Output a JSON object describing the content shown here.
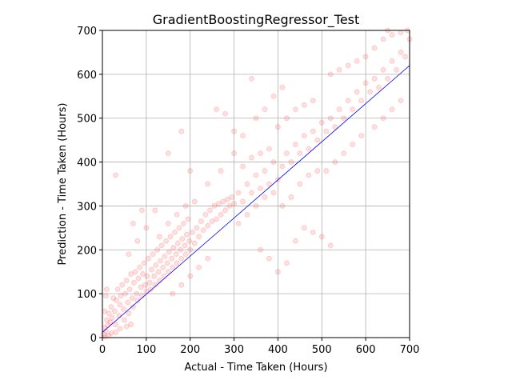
{
  "chart_data": {
    "type": "scatter",
    "title": "GradientBoostingRegressor_Test",
    "xlabel": "Actual - Time Taken (Hours)",
    "ylabel": "Prediction - Time Taken (Hours)",
    "xlim": [
      0,
      700
    ],
    "ylim": [
      0,
      700
    ],
    "xticks": [
      0,
      100,
      200,
      300,
      400,
      500,
      600,
      700
    ],
    "yticks": [
      0,
      100,
      200,
      300,
      400,
      500,
      600,
      700
    ],
    "grid": true,
    "marker_color": "#ff0000",
    "marker_alpha": 0.12,
    "line_color": "#0000ff",
    "fit_line": {
      "x": [
        0,
        700
      ],
      "y": [
        12,
        620
      ]
    },
    "points": [
      [
        3,
        8
      ],
      [
        5,
        22
      ],
      [
        8,
        15
      ],
      [
        10,
        40
      ],
      [
        12,
        28
      ],
      [
        15,
        55
      ],
      [
        18,
        35
      ],
      [
        20,
        70
      ],
      [
        22,
        45
      ],
      [
        25,
        90
      ],
      [
        28,
        60
      ],
      [
        30,
        30
      ],
      [
        32,
        85
      ],
      [
        35,
        110
      ],
      [
        38,
        50
      ],
      [
        40,
        75
      ],
      [
        42,
        95
      ],
      [
        45,
        120
      ],
      [
        48,
        65
      ],
      [
        50,
        40
      ],
      [
        52,
        100
      ],
      [
        55,
        130
      ],
      [
        58,
        80
      ],
      [
        60,
        55
      ],
      [
        62,
        110
      ],
      [
        65,
        145
      ],
      [
        68,
        90
      ],
      [
        70,
        70
      ],
      [
        72,
        125
      ],
      [
        75,
        150
      ],
      [
        78,
        100
      ],
      [
        80,
        85
      ],
      [
        82,
        135
      ],
      [
        85,
        160
      ],
      [
        88,
        115
      ],
      [
        90,
        95
      ],
      [
        92,
        145
      ],
      [
        95,
        170
      ],
      [
        98,
        120
      ],
      [
        100,
        105
      ],
      [
        5,
        60
      ],
      [
        8,
        95
      ],
      [
        10,
        110
      ],
      [
        6,
        2
      ],
      [
        14,
        5
      ],
      [
        20,
        10
      ],
      [
        30,
        12
      ],
      [
        40,
        20
      ],
      [
        55,
        25
      ],
      [
        65,
        30
      ],
      [
        102,
        140
      ],
      [
        105,
        180
      ],
      [
        108,
        125
      ],
      [
        110,
        110
      ],
      [
        112,
        155
      ],
      [
        115,
        190
      ],
      [
        118,
        140
      ],
      [
        120,
        120
      ],
      [
        122,
        165
      ],
      [
        125,
        200
      ],
      [
        128,
        150
      ],
      [
        130,
        130
      ],
      [
        132,
        175
      ],
      [
        135,
        210
      ],
      [
        138,
        160
      ],
      [
        140,
        140
      ],
      [
        142,
        185
      ],
      [
        145,
        220
      ],
      [
        148,
        170
      ],
      [
        150,
        150
      ],
      [
        152,
        195
      ],
      [
        155,
        230
      ],
      [
        158,
        180
      ],
      [
        160,
        160
      ],
      [
        162,
        205
      ],
      [
        165,
        240
      ],
      [
        168,
        190
      ],
      [
        170,
        170
      ],
      [
        172,
        215
      ],
      [
        175,
        250
      ],
      [
        178,
        200
      ],
      [
        180,
        180
      ],
      [
        182,
        225
      ],
      [
        185,
        260
      ],
      [
        188,
        210
      ],
      [
        190,
        190
      ],
      [
        192,
        235
      ],
      [
        195,
        270
      ],
      [
        198,
        220
      ],
      [
        200,
        200
      ],
      [
        205,
        240
      ],
      [
        210,
        215
      ],
      [
        215,
        250
      ],
      [
        220,
        230
      ],
      [
        225,
        265
      ],
      [
        230,
        245
      ],
      [
        235,
        280
      ],
      [
        240,
        255
      ],
      [
        245,
        290
      ],
      [
        250,
        265
      ],
      [
        255,
        300
      ],
      [
        260,
        270
      ],
      [
        265,
        305
      ],
      [
        270,
        280
      ],
      [
        275,
        310
      ],
      [
        280,
        290
      ],
      [
        285,
        315
      ],
      [
        290,
        300
      ],
      [
        295,
        320
      ],
      [
        300,
        305
      ],
      [
        160,
        100
      ],
      [
        180,
        120
      ],
      [
        200,
        140
      ],
      [
        220,
        160
      ],
      [
        240,
        180
      ],
      [
        130,
        230
      ],
      [
        150,
        260
      ],
      [
        170,
        280
      ],
      [
        190,
        300
      ],
      [
        210,
        310
      ],
      [
        310,
        330
      ],
      [
        320,
        310
      ],
      [
        330,
        350
      ],
      [
        340,
        330
      ],
      [
        350,
        370
      ],
      [
        360,
        340
      ],
      [
        370,
        380
      ],
      [
        380,
        350
      ],
      [
        390,
        400
      ],
      [
        400,
        360
      ],
      [
        310,
        260
      ],
      [
        330,
        280
      ],
      [
        350,
        300
      ],
      [
        370,
        320
      ],
      [
        390,
        330
      ],
      [
        320,
        390
      ],
      [
        340,
        410
      ],
      [
        360,
        420
      ],
      [
        380,
        430
      ],
      [
        300,
        420
      ],
      [
        410,
        390
      ],
      [
        420,
        420
      ],
      [
        430,
        400
      ],
      [
        440,
        440
      ],
      [
        450,
        420
      ],
      [
        460,
        460
      ],
      [
        470,
        430
      ],
      [
        480,
        470
      ],
      [
        490,
        450
      ],
      [
        500,
        490
      ],
      [
        410,
        300
      ],
      [
        430,
        320
      ],
      [
        450,
        350
      ],
      [
        470,
        370
      ],
      [
        490,
        380
      ],
      [
        420,
        500
      ],
      [
        440,
        520
      ],
      [
        460,
        530
      ],
      [
        480,
        540
      ],
      [
        400,
        480
      ],
      [
        510,
        470
      ],
      [
        520,
        500
      ],
      [
        530,
        480
      ],
      [
        540,
        520
      ],
      [
        550,
        500
      ],
      [
        560,
        540
      ],
      [
        570,
        520
      ],
      [
        580,
        560
      ],
      [
        590,
        540
      ],
      [
        600,
        580
      ],
      [
        510,
        380
      ],
      [
        530,
        400
      ],
      [
        550,
        420
      ],
      [
        570,
        440
      ],
      [
        590,
        460
      ],
      [
        520,
        600
      ],
      [
        540,
        610
      ],
      [
        560,
        620
      ],
      [
        580,
        630
      ],
      [
        600,
        640
      ],
      [
        610,
        560
      ],
      [
        620,
        590
      ],
      [
        630,
        570
      ],
      [
        640,
        610
      ],
      [
        650,
        590
      ],
      [
        660,
        630
      ],
      [
        670,
        610
      ],
      [
        680,
        650
      ],
      [
        690,
        640
      ],
      [
        700,
        680
      ],
      [
        620,
        480
      ],
      [
        640,
        500
      ],
      [
        660,
        520
      ],
      [
        680,
        540
      ],
      [
        620,
        660
      ],
      [
        640,
        680
      ],
      [
        660,
        690
      ],
      [
        680,
        695
      ],
      [
        695,
        700
      ],
      [
        650,
        700
      ],
      [
        340,
        590
      ],
      [
        360,
        200
      ],
      [
        380,
        180
      ],
      [
        400,
        150
      ],
      [
        420,
        170
      ],
      [
        440,
        220
      ],
      [
        460,
        250
      ],
      [
        480,
        240
      ],
      [
        500,
        230
      ],
      [
        520,
        210
      ],
      [
        180,
        470
      ],
      [
        150,
        420
      ],
      [
        90,
        290
      ],
      [
        60,
        190
      ],
      [
        30,
        370
      ],
      [
        100,
        250
      ],
      [
        120,
        290
      ],
      [
        80,
        220
      ],
      [
        70,
        260
      ],
      [
        200,
        380
      ],
      [
        260,
        520
      ],
      [
        280,
        510
      ],
      [
        240,
        350
      ],
      [
        270,
        380
      ],
      [
        300,
        470
      ],
      [
        320,
        460
      ],
      [
        350,
        500
      ],
      [
        370,
        520
      ],
      [
        390,
        550
      ],
      [
        410,
        570
      ]
    ]
  }
}
